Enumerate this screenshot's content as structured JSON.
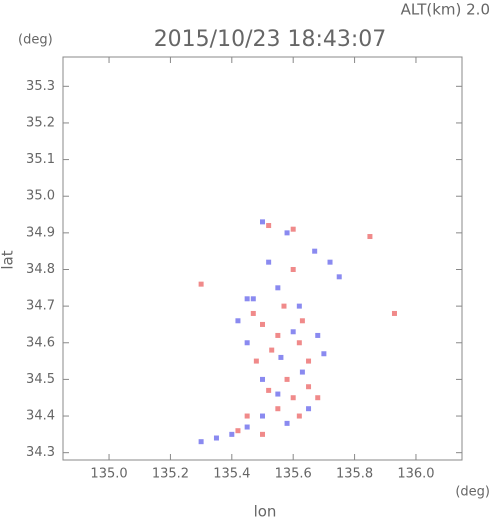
{
  "chart_data": {
    "type": "scatter",
    "title": "2015/10/23 18:43:07",
    "subtitle": "ALT(km)  2.0",
    "y_unit": "(deg)",
    "x_unit": "(deg)",
    "x_label": "lon",
    "y_label": "lat",
    "xlim": [
      134.85,
      136.15
    ],
    "ylim": [
      34.28,
      35.38
    ],
    "xticks": [
      {
        "value": 135.0,
        "label": "135.0"
      },
      135.2,
      135.4,
      135.6,
      135.8,
      {
        "value": 136.0,
        "label": "136.0"
      }
    ],
    "yticks": [
      34.3,
      34.4,
      34.5,
      34.6,
      34.7,
      34.8,
      34.9,
      {
        "value": 35.0,
        "label": "35.0"
      },
      35.1,
      35.2,
      35.3
    ],
    "series": [
      {
        "color": "#f08a8a",
        "x": [
          135.52,
          135.6,
          135.85,
          135.93,
          135.3,
          135.55,
          135.5,
          135.62,
          135.65,
          135.58,
          135.52,
          135.6,
          135.65,
          135.55,
          135.45,
          135.62,
          135.48,
          135.57,
          135.6,
          135.5,
          135.42,
          135.68,
          135.53,
          135.47,
          135.63
        ],
        "y": [
          34.92,
          34.91,
          34.89,
          34.68,
          34.76,
          34.62,
          34.65,
          34.6,
          34.55,
          34.5,
          34.47,
          34.45,
          34.48,
          34.42,
          34.4,
          34.4,
          34.55,
          34.7,
          34.8,
          34.35,
          34.36,
          34.45,
          34.58,
          34.68,
          34.66
        ]
      },
      {
        "color": "#8a8af0",
        "x": [
          135.5,
          135.58,
          135.67,
          135.72,
          135.52,
          135.55,
          135.47,
          135.42,
          135.6,
          135.68,
          135.45,
          135.56,
          135.63,
          135.5,
          135.55,
          135.65,
          135.5,
          135.58,
          135.4,
          135.35,
          135.3,
          135.45,
          135.7,
          135.62,
          135.75,
          135.45
        ],
        "y": [
          34.93,
          34.9,
          34.85,
          34.82,
          34.82,
          34.75,
          34.72,
          34.66,
          34.63,
          34.62,
          34.6,
          34.56,
          34.52,
          34.5,
          34.46,
          34.42,
          34.4,
          34.38,
          34.35,
          34.34,
          34.33,
          34.37,
          34.57,
          34.7,
          34.78,
          34.72
        ]
      }
    ]
  }
}
